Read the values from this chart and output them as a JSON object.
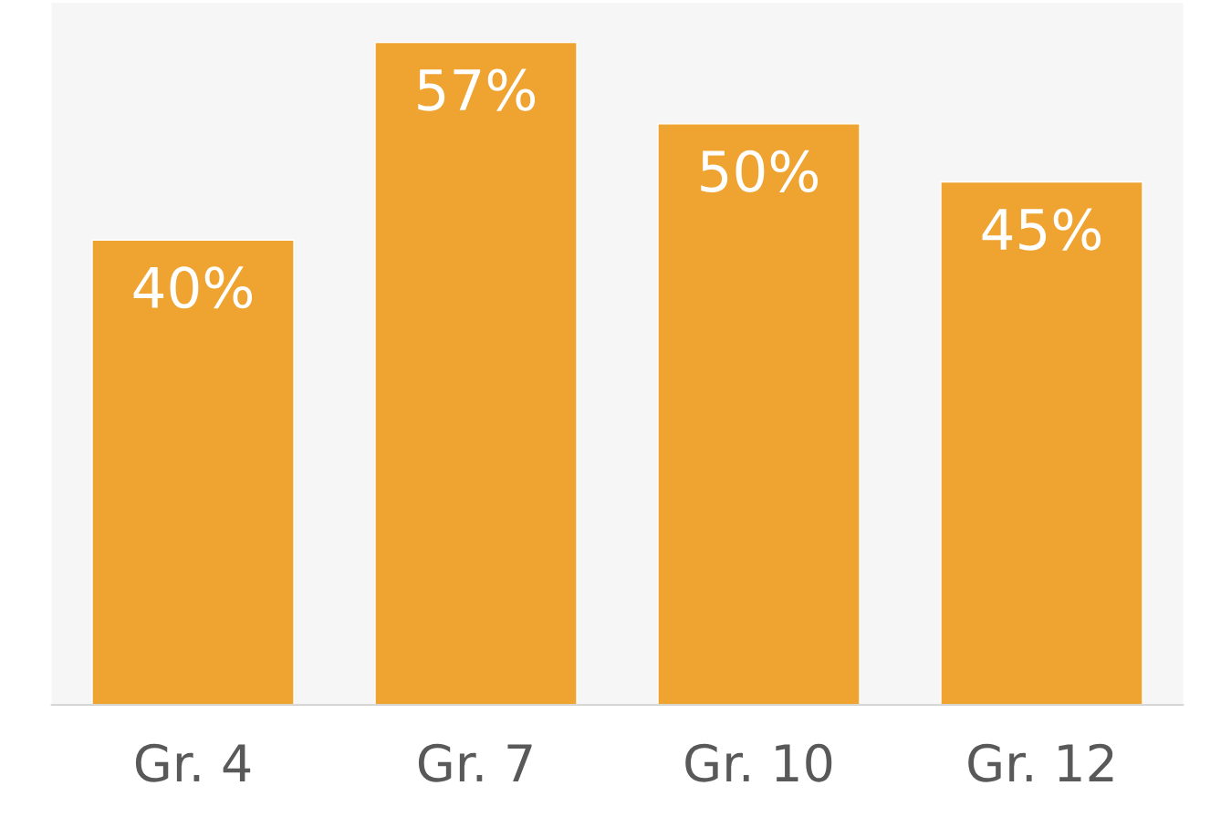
{
  "chart_data": {
    "type": "bar",
    "categories": [
      "Gr. 4",
      "Gr. 7",
      "Gr. 10",
      "Gr. 12"
    ],
    "values": [
      40,
      57,
      50,
      45
    ],
    "value_labels": [
      "40%",
      "57%",
      "50%",
      "45%"
    ],
    "color": "#efa432"
  }
}
